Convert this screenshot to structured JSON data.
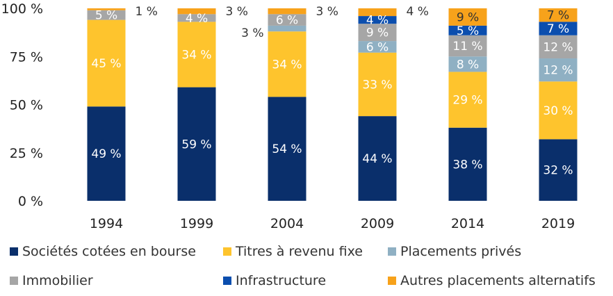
{
  "chart_data": {
    "type": "bar",
    "stacked": true,
    "title": "",
    "xlabel": "",
    "ylabel": "",
    "ylim": [
      0,
      100
    ],
    "yticks": [
      {
        "value": 0,
        "label": "0 %"
      },
      {
        "value": 25,
        "label": "25 %"
      },
      {
        "value": 50,
        "label": "50 %"
      },
      {
        "value": 75,
        "label": "75 %"
      },
      {
        "value": 100,
        "label": "100 %"
      }
    ],
    "grid": false,
    "legend_position": "bottom",
    "categories": [
      "1994",
      "1999",
      "2004",
      "2009",
      "2014",
      "2019"
    ],
    "series": [
      {
        "name": "Sociétés cotées en bourse",
        "color": "#0a2f6b",
        "label_color": "#ffffff",
        "values": [
          49,
          59,
          54,
          44,
          38,
          32
        ],
        "labels": [
          "49 %",
          "59 %",
          "54 %",
          "44 %",
          "38 %",
          "32 %"
        ]
      },
      {
        "name": "Titres à revenu fixe",
        "color": "#fec42d",
        "label_color": "#ffffff",
        "values": [
          45,
          34,
          34,
          33,
          29,
          30
        ],
        "labels": [
          "45 %",
          "34 %",
          "34 %",
          "33 %",
          "29 %",
          "30 %"
        ]
      },
      {
        "name": "Placements privés",
        "color": "#8fb0c3",
        "label_color": "#ffffff",
        "values": [
          0,
          0,
          3,
          6,
          8,
          12
        ],
        "labels": [
          "",
          "",
          "3 %",
          "6 %",
          "8 %",
          "12 %"
        ],
        "outside": [
          false,
          false,
          true,
          false,
          false,
          false
        ]
      },
      {
        "name": "Immobilier",
        "color": "#a6a6a6",
        "label_color": "#ffffff",
        "values": [
          5,
          4,
          6,
          9,
          11,
          12
        ],
        "labels": [
          "5 %",
          "4 %",
          "6 %",
          "9 %",
          "11 %",
          "12 %"
        ]
      },
      {
        "name": "Infrastructure",
        "color": "#0b4eae",
        "label_color": "#ffffff",
        "values": [
          0,
          0,
          0,
          4,
          5,
          7
        ],
        "labels": [
          "",
          "",
          "",
          "4 %",
          "5 %",
          "7 %"
        ]
      },
      {
        "name": "Autres placements alternatifs",
        "color": "#f7a21b",
        "label_color": "#333333",
        "values": [
          1,
          3,
          3,
          4,
          9,
          7
        ],
        "labels": [
          "1 %",
          "3 %",
          "3 %",
          "4 %",
          "9 %",
          "7 %"
        ],
        "outside": [
          true,
          true,
          true,
          true,
          false,
          false
        ]
      }
    ]
  }
}
